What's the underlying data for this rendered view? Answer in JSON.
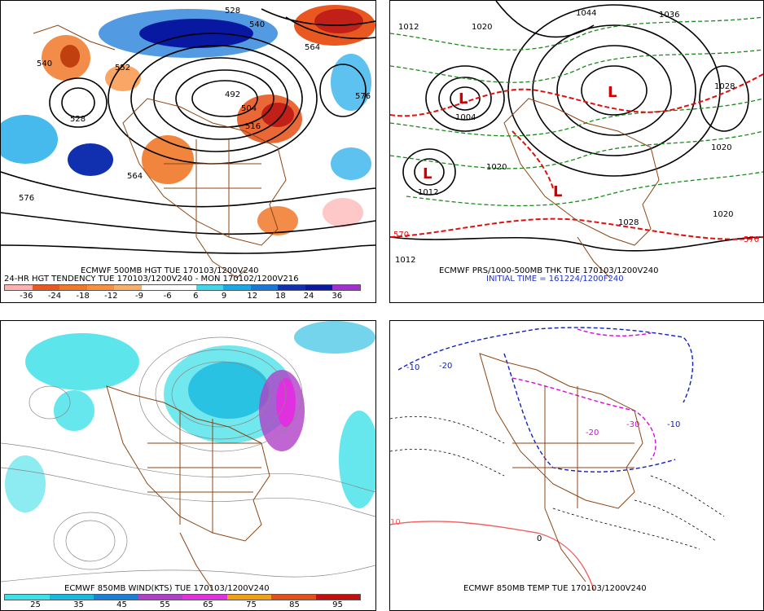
{
  "panels": [
    {
      "title_line1": "ECMWF 500MB HGT TUE 170103/1200V240",
      "title_line2": "24-HR HGT TENDENCY TUE 170103/1200V240 - MON 170102/1200V216",
      "colorbar": {
        "ticks": [
          "-36",
          "-24",
          "-18",
          "-12",
          "-9",
          "-6",
          "6",
          "9",
          "12",
          "18",
          "24",
          "36"
        ],
        "colors": [
          "#ffb0b0",
          "#e85820",
          "#f07828",
          "#f89040",
          "#f8b068",
          "#ffffff",
          "#40d8e8",
          "#18a8e8",
          "#1878d8",
          "#1030b0",
          "#0818a0",
          "#a030d0"
        ]
      },
      "contour_labels": [
        "528",
        "540",
        "552",
        "564",
        "576",
        "504",
        "516",
        "492",
        "528",
        "576",
        "540",
        "564"
      ]
    },
    {
      "title_line1": "ECMWF PRS/1000-500MB THK TUE 170103/1200V240",
      "title_line2": "INITIAL TIME = 161224/1200F240",
      "high_low": [
        "L",
        "L",
        "L",
        "L"
      ],
      "contour_labels": [
        "1012",
        "1020",
        "1004",
        "1028",
        "1036",
        "1044",
        "1020",
        "1012",
        "1020",
        "1028",
        "570",
        "570",
        "1020",
        "1012"
      ]
    },
    {
      "title_line1": "ECMWF 850MB WIND(KTS) TUE 170103/1200V240",
      "colorbar": {
        "ticks": [
          "25",
          "35",
          "45",
          "55",
          "65",
          "75",
          "85",
          "95"
        ],
        "colors": [
          "#40e0e8",
          "#18b8e0",
          "#1880d8",
          "#b040c8",
          "#e030e0",
          "#f0a018",
          "#e05018",
          "#c01010"
        ]
      }
    },
    {
      "title_line1": "ECMWF 850MB TEMP TUE 170103/1200V240",
      "contour_labels": [
        "-10",
        "-20",
        "-30",
        "-20",
        "-10",
        "0",
        "10"
      ]
    }
  ],
  "colors": {
    "border": "#8b4513",
    "height_contour": "#000000",
    "thickness_cold": "#1a8a1a",
    "thickness_warm": "#e01010",
    "temp_cold": "#1020c0",
    "temp_very_cold": "#d010d0",
    "temp_warm": "#f06060"
  }
}
